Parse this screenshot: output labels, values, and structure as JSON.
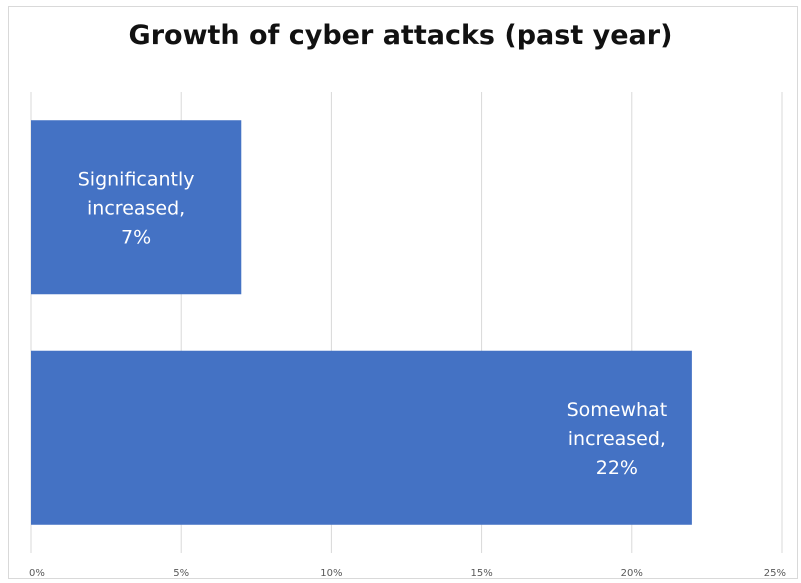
{
  "chart_data": {
    "type": "bar",
    "orientation": "horizontal",
    "title": "Growth of cyber attacks (past year)",
    "xlabel": "",
    "ylabel": "",
    "xlim": [
      0,
      25
    ],
    "x_ticks": [
      "0%",
      "5%",
      "10%",
      "15%",
      "20%",
      "25%"
    ],
    "grid": "vertical",
    "legend": "none",
    "bar_color": "#4472c4",
    "bars": [
      {
        "category": "Significantly increased",
        "value": 7,
        "label_lines": [
          "Significantly",
          "increased,",
          "7%"
        ],
        "label_align": "center"
      },
      {
        "category": "Somewhat increased",
        "value": 22,
        "label_lines": [
          "Somewhat",
          "increased,",
          "22%"
        ],
        "label_align": "right"
      }
    ]
  }
}
